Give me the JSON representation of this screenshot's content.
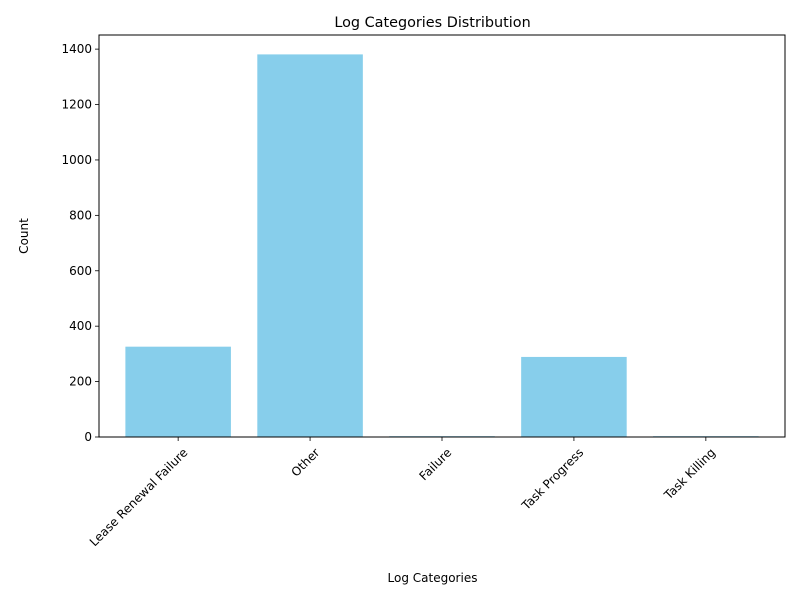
{
  "chart_data": {
    "type": "bar",
    "title": "Log Categories Distribution",
    "xlabel": "Log Categories",
    "ylabel": "Count",
    "categories": [
      "Lease Renewal Failure",
      "Other",
      "Failure",
      "Task Progress",
      "Task Killing"
    ],
    "values": [
      326,
      1381,
      3,
      289,
      3
    ],
    "ylim": [
      0,
      1451
    ],
    "yticks": [
      0,
      200,
      400,
      600,
      800,
      1000,
      1200,
      1400
    ],
    "bar_color": "#87ceeb",
    "grid": false,
    "legend": "none"
  }
}
